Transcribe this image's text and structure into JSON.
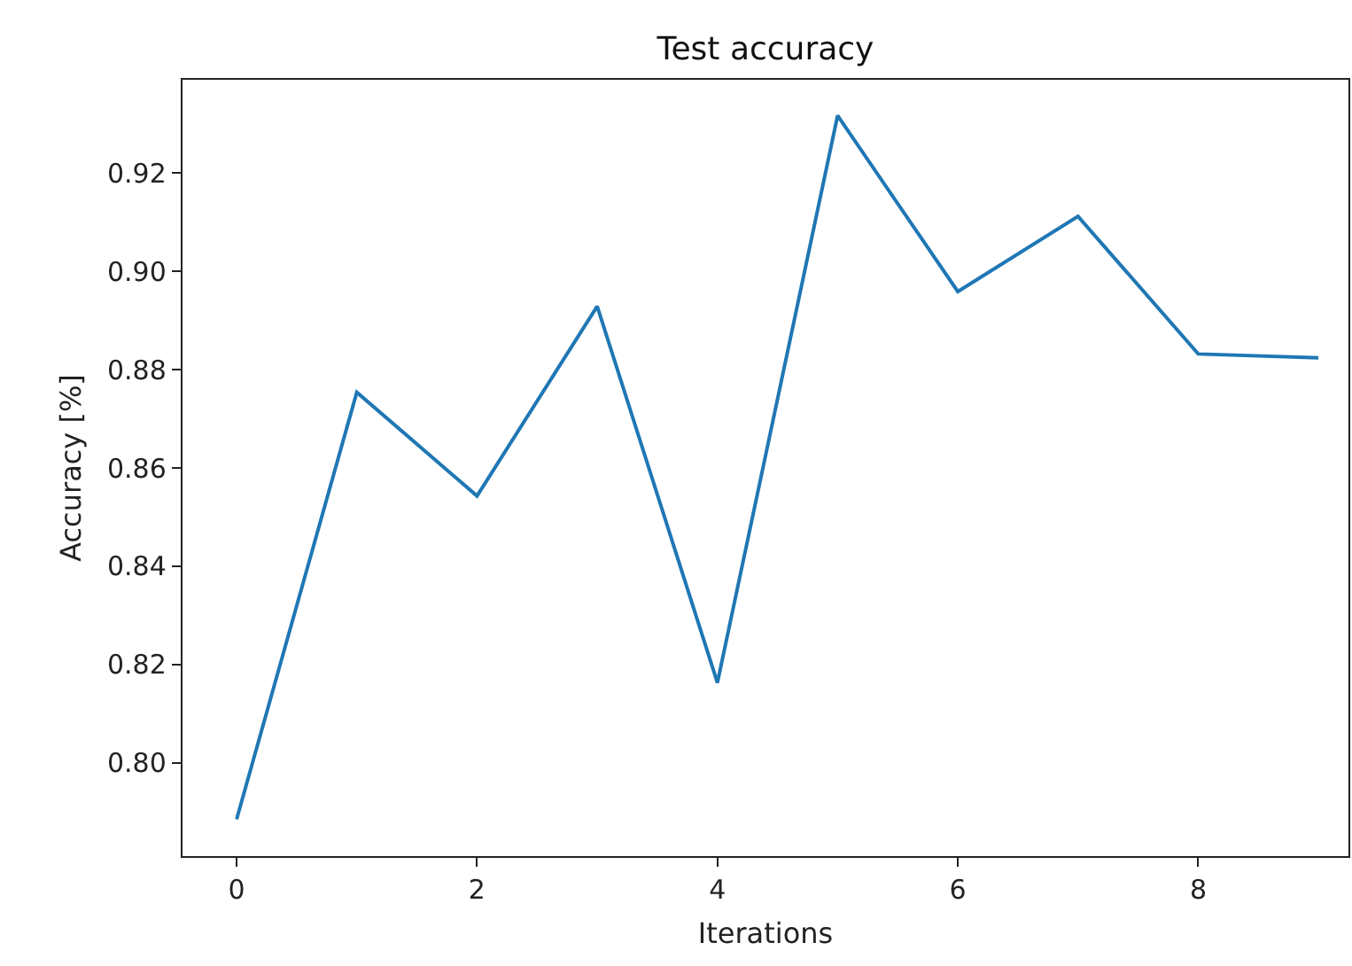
{
  "chart_data": {
    "type": "line",
    "title": "Test accuracy",
    "xlabel": "Iterations",
    "ylabel": "Accuracy [%]",
    "x": [
      0,
      1,
      2,
      3,
      4,
      5,
      6,
      7,
      8,
      9
    ],
    "series": [
      {
        "color": "#1f77b4",
        "values": [
          0.7885,
          0.8754,
          0.8543,
          0.8929,
          0.8163,
          0.9317,
          0.8959,
          0.9112,
          0.8832,
          0.8824
        ]
      }
    ],
    "xlim": [
      -0.45,
      9.25
    ],
    "xticks": [
      0,
      2,
      4,
      6,
      8
    ],
    "ylim": [
      0.781,
      0.939
    ],
    "yticks": [
      {
        "value": 0.8,
        "label": "0.80"
      },
      {
        "value": 0.82,
        "label": "0.82"
      },
      {
        "value": 0.84,
        "label": "0.84"
      },
      {
        "value": 0.86,
        "label": "0.86"
      },
      {
        "value": 0.88,
        "label": "0.88"
      },
      {
        "value": 0.9,
        "label": "0.90"
      },
      {
        "value": 0.92,
        "label": "0.92"
      }
    ],
    "grid": false,
    "marker": "none",
    "line_style": "solid"
  }
}
